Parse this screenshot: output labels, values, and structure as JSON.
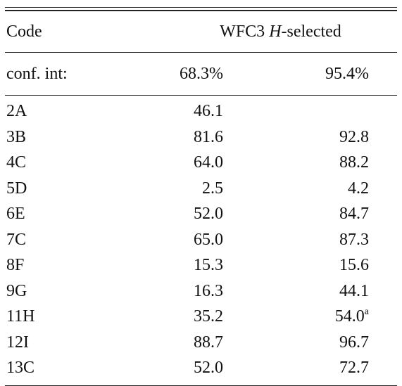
{
  "header": {
    "code_label": "Code",
    "instrument": "WFC3",
    "band": "H",
    "selected_suffix": "-selected"
  },
  "subheader": {
    "label": "conf. int:",
    "ci1": "68.3%",
    "ci2": "95.4%"
  },
  "rows": [
    {
      "code": "2A",
      "ci68": "46.1",
      "ci95": "",
      "note": ""
    },
    {
      "code": "3B",
      "ci68": "81.6",
      "ci95": "92.8",
      "note": ""
    },
    {
      "code": "4C",
      "ci68": "64.0",
      "ci95": "88.2",
      "note": ""
    },
    {
      "code": "5D",
      "ci68": "2.5",
      "ci95": "4.2",
      "note": ""
    },
    {
      "code": "6E",
      "ci68": "52.0",
      "ci95": "84.7",
      "note": ""
    },
    {
      "code": "7C",
      "ci68": "65.0",
      "ci95": "87.3",
      "note": ""
    },
    {
      "code": "8F",
      "ci68": "15.3",
      "ci95": "15.6",
      "note": ""
    },
    {
      "code": "9G",
      "ci68": "16.3",
      "ci95": "44.1",
      "note": ""
    },
    {
      "code": "11H",
      "ci68": "35.2",
      "ci95": "54.0",
      "note": "a"
    },
    {
      "code": "12I",
      "ci68": "88.7",
      "ci95": "96.7",
      "note": ""
    },
    {
      "code": "13C",
      "ci68": "52.0",
      "ci95": "72.7",
      "note": ""
    }
  ]
}
